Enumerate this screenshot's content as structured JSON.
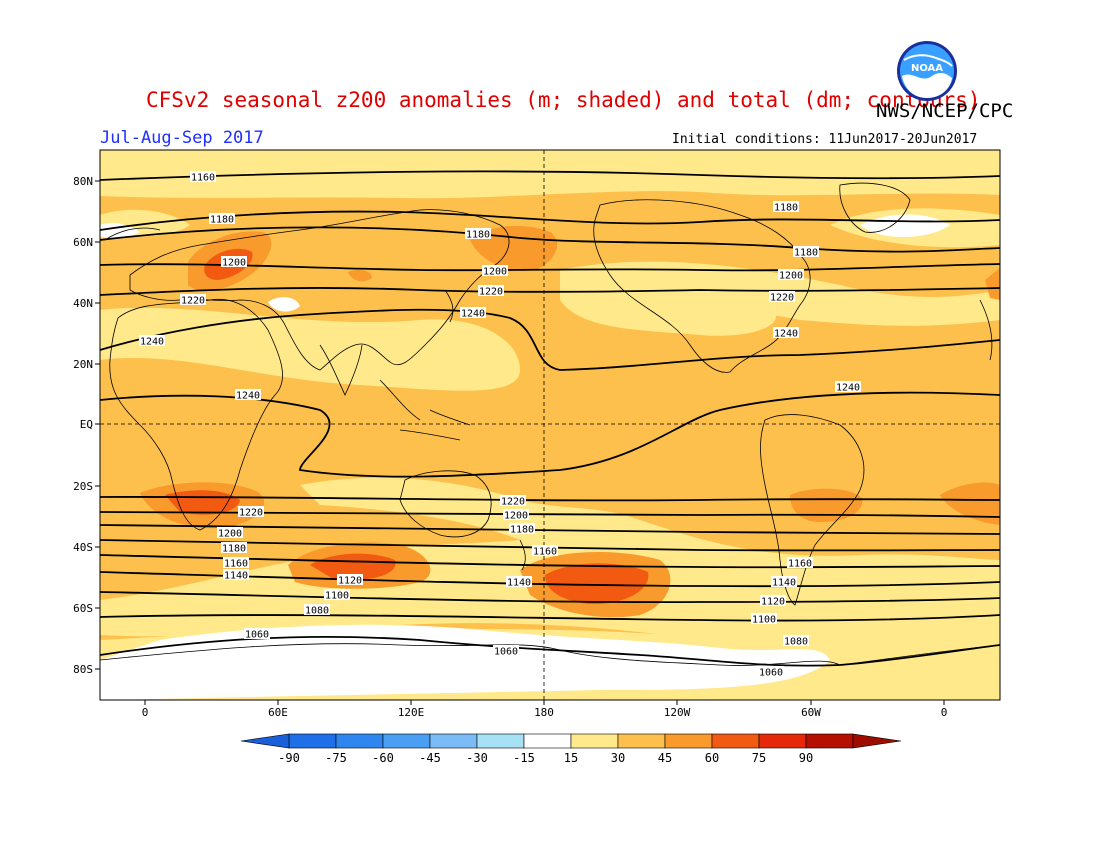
{
  "header": {
    "title": "CFSv2 seasonal z200 anomalies (m; shaded) and total (dm; contours)",
    "agency": "NWS/NCEP/CPC",
    "period": "Jul-Aug-Sep 2017",
    "initial_conditions": "Initial conditions: 11Jun2017-20Jun2017",
    "logo_text": "NOAA"
  },
  "axes": {
    "lat_labels": [
      "80N",
      "60N",
      "40N",
      "20N",
      "EQ",
      "20S",
      "40S",
      "60S",
      "80S"
    ],
    "lon_labels": [
      "0",
      "60E",
      "120E",
      "180",
      "120W",
      "60W",
      "0"
    ]
  },
  "contour_labels": [
    "1160",
    "1180",
    "1180",
    "1180",
    "1180",
    "1200",
    "1200",
    "1200",
    "1220",
    "1220",
    "1220",
    "1240",
    "1240",
    "1240",
    "1240",
    "1240",
    "1220",
    "1220",
    "1200",
    "1200",
    "1180",
    "1180",
    "1160",
    "1160",
    "1140",
    "1140",
    "1120",
    "1120",
    "1100",
    "1100",
    "1080",
    "1080",
    "1060",
    "1060",
    "1060",
    "1160",
    "1140"
  ],
  "colorbar": {
    "ticks": [
      "-90",
      "-75",
      "-60",
      "-45",
      "-30",
      "-15",
      "15",
      "30",
      "45",
      "60",
      "75",
      "90"
    ],
    "colors": [
      "#1e6fe8",
      "#2f86ee",
      "#4a9ff3",
      "#7bbcf6",
      "#a6e1f5",
      "#ffffff",
      "#ffe98a",
      "#fdc04c",
      "#f99a2c",
      "#f25a12",
      "#e6280a",
      "#b50f00"
    ],
    "left_end_color": "#1a5ed9",
    "right_end_color": "#9e0c00"
  }
}
